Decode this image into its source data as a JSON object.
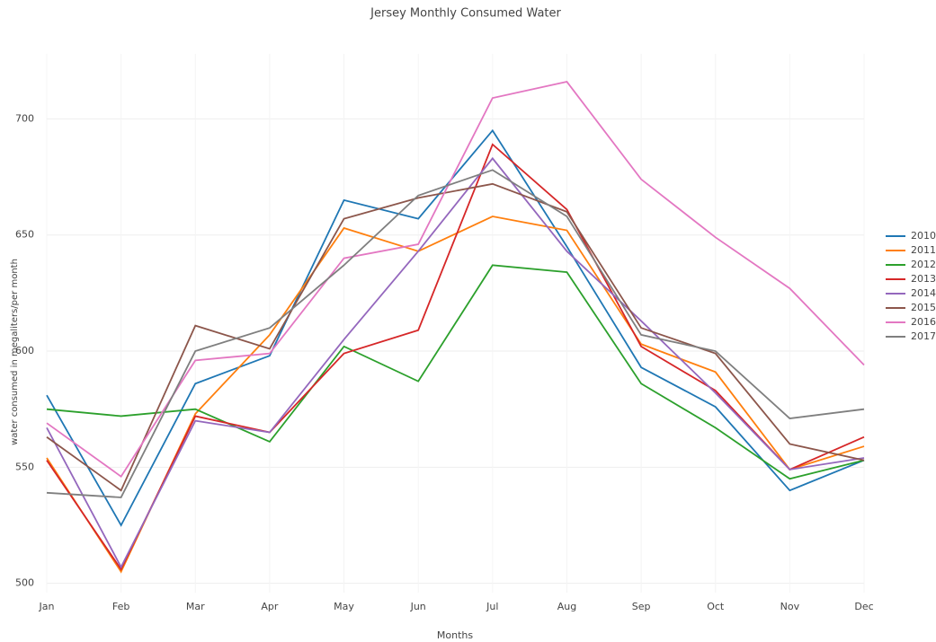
{
  "chart_data": {
    "type": "line",
    "title": "Jersey Monthly Consumed Water",
    "x_label": "Months",
    "y_label": "water consumed in megaliters/per month",
    "categories": [
      "Jan",
      "Feb",
      "Mar",
      "Apr",
      "May",
      "Jun",
      "Jul",
      "Aug",
      "Sep",
      "Oct",
      "Nov",
      "Dec"
    ],
    "series": [
      {
        "name": "2010",
        "color": "#1f77b4",
        "values": [
          581,
          525,
          586,
          598,
          665,
          657,
          695,
          645,
          593,
          576,
          540,
          553
        ]
      },
      {
        "name": "2011",
        "color": "#ff7f0e",
        "values": [
          554,
          505,
          573,
          607,
          653,
          643,
          658,
          652,
          603,
          591,
          549,
          559
        ]
      },
      {
        "name": "2012",
        "color": "#2ca02c",
        "values": [
          575,
          572,
          575,
          561,
          602,
          587,
          637,
          634,
          586,
          567,
          545,
          553
        ]
      },
      {
        "name": "2013",
        "color": "#d62728",
        "values": [
          553,
          506,
          572,
          565,
          599,
          609,
          689,
          661,
          602,
          583,
          549,
          563
        ]
      },
      {
        "name": "2014",
        "color": "#9467bd",
        "values": [
          567,
          507,
          570,
          565,
          605,
          643,
          683,
          643,
          613,
          582,
          549,
          554
        ]
      },
      {
        "name": "2015",
        "color": "#8c564b",
        "values": [
          563,
          540,
          611,
          601,
          657,
          666,
          672,
          660,
          610,
          599,
          560,
          553
        ]
      },
      {
        "name": "2016",
        "color": "#e377c2",
        "values": [
          569,
          546,
          596,
          599,
          640,
          646,
          709,
          716,
          674,
          649,
          627,
          594
        ]
      },
      {
        "name": "2017",
        "color": "#7f7f7f",
        "values": [
          539,
          537,
          600,
          610,
          637,
          667,
          678,
          658,
          607,
          600,
          571,
          575
        ]
      }
    ],
    "ylim": [
      496,
      728
    ],
    "yticks": [
      500,
      550,
      600,
      650,
      700
    ],
    "grid": true,
    "legend": "right"
  }
}
